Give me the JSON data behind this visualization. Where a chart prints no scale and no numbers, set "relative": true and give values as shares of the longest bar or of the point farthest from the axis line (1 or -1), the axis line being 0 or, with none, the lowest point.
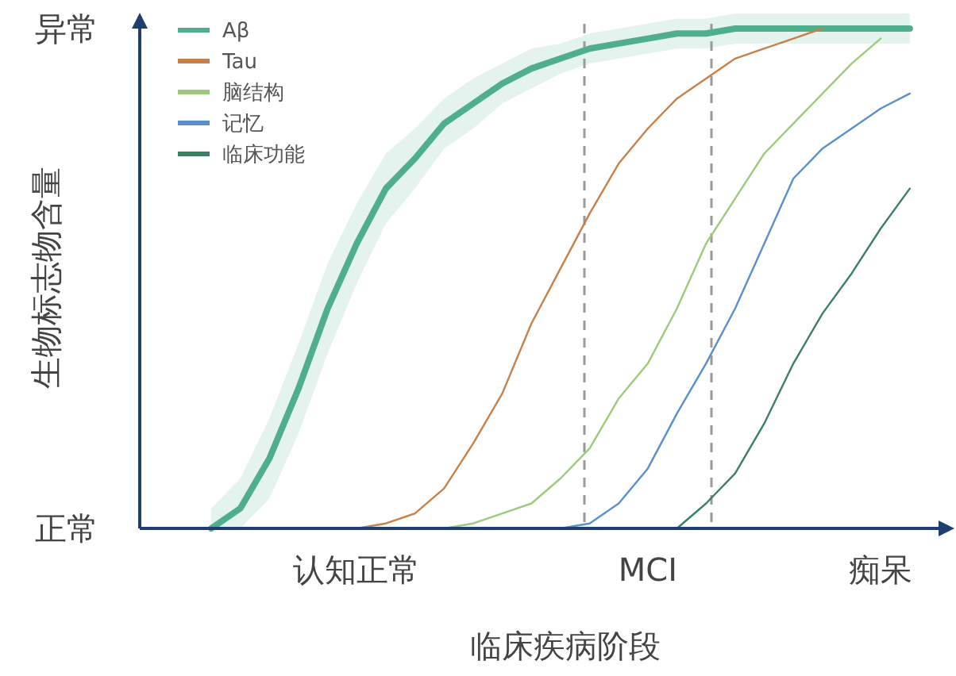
{
  "chart_data": {
    "type": "line",
    "xlabel": "临床疾病阶段",
    "ylabel": "生物标志物含量",
    "categories": [
      null,
      null,
      null,
      null,
      null,
      "认知正常",
      null,
      null,
      null,
      null,
      null,
      null,
      null,
      null,
      null,
      "MCI",
      null,
      null,
      null,
      null,
      null,
      null,
      null,
      "痴呆",
      null
    ],
    "relative": true,
    "annotations": [
      "异常",
      "正常"
    ],
    "legend": "top left",
    "tick_labels": "x",
    "series": [
      {
        "name": "Aβ",
        "color": "#4fae8c",
        "values": [
          0,
          0.04,
          0.14,
          0.28,
          0.44,
          0.57,
          0.68,
          0.74,
          0.81,
          0.85,
          0.89,
          0.92,
          0.94,
          0.96,
          0.97,
          0.98,
          0.99,
          0.99,
          1.0,
          1.0,
          1.0,
          1.0,
          1.0,
          1.0,
          1.0
        ],
        "upper": [
          0.04,
          0.1,
          0.22,
          0.37,
          0.53,
          0.65,
          0.75,
          0.8,
          0.86,
          0.9,
          0.93,
          0.96,
          0.97,
          0.99,
          1.0,
          1.01,
          1.02,
          1.02,
          1.03,
          1.03,
          1.03,
          1.03,
          1.03,
          1.03,
          1.03
        ],
        "lower": [
          0,
          0,
          0.06,
          0.19,
          0.35,
          0.49,
          0.61,
          0.68,
          0.76,
          0.8,
          0.85,
          0.88,
          0.91,
          0.93,
          0.94,
          0.95,
          0.96,
          0.96,
          0.97,
          0.97,
          0.97,
          0.97,
          0.97,
          0.97,
          0.97
        ]
      },
      {
        "name": "Tau",
        "color": "#c8804a",
        "values": [
          null,
          null,
          null,
          null,
          null,
          0,
          0.01,
          0.03,
          0.08,
          0.17,
          0.27,
          0.41,
          0.52,
          0.63,
          0.73,
          0.8,
          0.86,
          0.9,
          0.94,
          0.96,
          0.98,
          1.0,
          null,
          null,
          null
        ]
      },
      {
        "name": "脑结构",
        "color": "#9ccb7c",
        "values": [
          null,
          null,
          null,
          null,
          null,
          null,
          null,
          null,
          0,
          0.01,
          0.03,
          0.05,
          0.1,
          0.16,
          0.26,
          0.33,
          0.44,
          0.57,
          0.66,
          0.75,
          0.81,
          0.87,
          0.93,
          0.98,
          null
        ]
      },
      {
        "name": "记忆",
        "color": "#5b8fc9",
        "values": [
          null,
          null,
          null,
          null,
          null,
          null,
          null,
          null,
          null,
          null,
          null,
          null,
          0,
          0.01,
          0.05,
          0.12,
          0.23,
          0.33,
          0.44,
          0.57,
          0.7,
          0.76,
          0.8,
          0.84,
          0.87
        ]
      },
      {
        "name": "临床功能",
        "color": "#3c7f63",
        "values": [
          null,
          null,
          null,
          null,
          null,
          null,
          null,
          null,
          null,
          null,
          null,
          null,
          null,
          null,
          null,
          null,
          0,
          0.05,
          0.11,
          0.21,
          0.33,
          0.43,
          0.51,
          0.6,
          0.68
        ]
      }
    ]
  }
}
